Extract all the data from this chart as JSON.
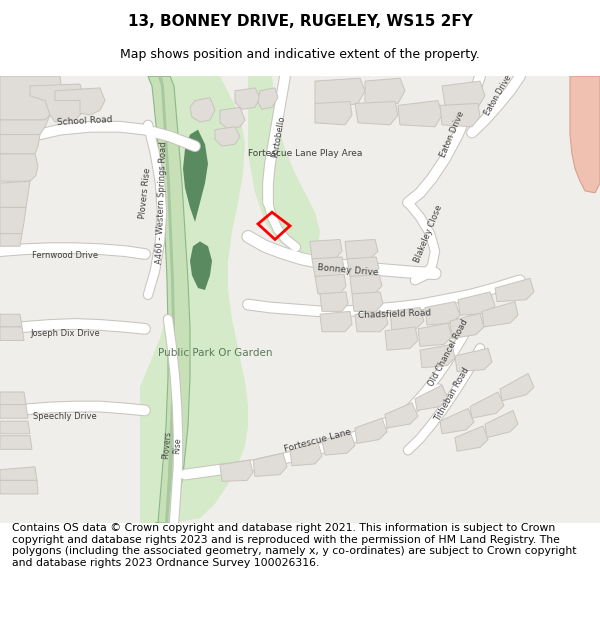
{
  "title": "13, BONNEY DRIVE, RUGELEY, WS15 2FY",
  "subtitle": "Map shows position and indicative extent of the property.",
  "footer": "Contains OS data © Crown copyright and database right 2021. This information is subject to Crown copyright and database rights 2023 and is reproduced with the permission of HM Land Registry. The polygons (including the associated geometry, namely x, y co-ordinates) are subject to Crown copyright and database rights 2023 Ordnance Survey 100026316.",
  "map_bg": "#f0eeea",
  "building_fill": "#e0ddd8",
  "building_edge": "#c8c4be",
  "road_fill": "#ffffff",
  "road_edge": "#d0ccc8",
  "green_park": "#d4eac8",
  "green_dark": "#5a8a60",
  "green_road_fill": "#c8e0b8",
  "green_road_edge": "#8ab888",
  "salmon": "#f0c0b0",
  "salmon_edge": "#d8a090",
  "red_plot": "#ff0000",
  "text_color": "#404040",
  "title_fontsize": 11,
  "subtitle_fontsize": 9,
  "footer_fontsize": 7.8,
  "map_text_size": 6.5
}
